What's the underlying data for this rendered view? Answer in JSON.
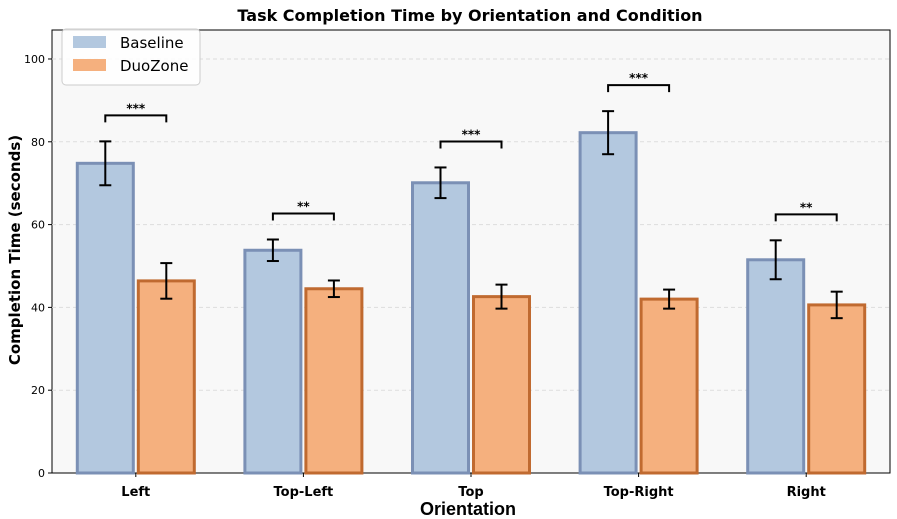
{
  "chart_data": {
    "type": "bar",
    "title": "Task Completion Time by Orientation and Condition",
    "xlabel": "Orientation",
    "ylabel": "Completion Time (seconds)",
    "categories": [
      "Left",
      "Top-Left",
      "Top",
      "Top-Right",
      "Right"
    ],
    "ylim": [
      0,
      107
    ],
    "yticks": [
      0,
      20,
      40,
      60,
      80,
      100
    ],
    "grid": true,
    "legend_position": "top-left",
    "series": [
      {
        "name": "Baseline",
        "values": [
          74.8,
          53.8,
          70.1,
          82.2,
          51.5
        ],
        "errors": [
          5.3,
          2.6,
          3.7,
          5.2,
          4.7
        ],
        "fill": "#b3c8df",
        "stroke": "#7b90b5"
      },
      {
        "name": "DuoZone",
        "values": [
          46.4,
          44.5,
          42.6,
          42.0,
          40.6
        ],
        "errors": [
          4.3,
          2.0,
          2.9,
          2.3,
          3.2
        ],
        "fill": "#f5b07e",
        "stroke": "#c06a30"
      }
    ],
    "significance": [
      "***",
      "**",
      "***",
      "***",
      "**"
    ]
  }
}
